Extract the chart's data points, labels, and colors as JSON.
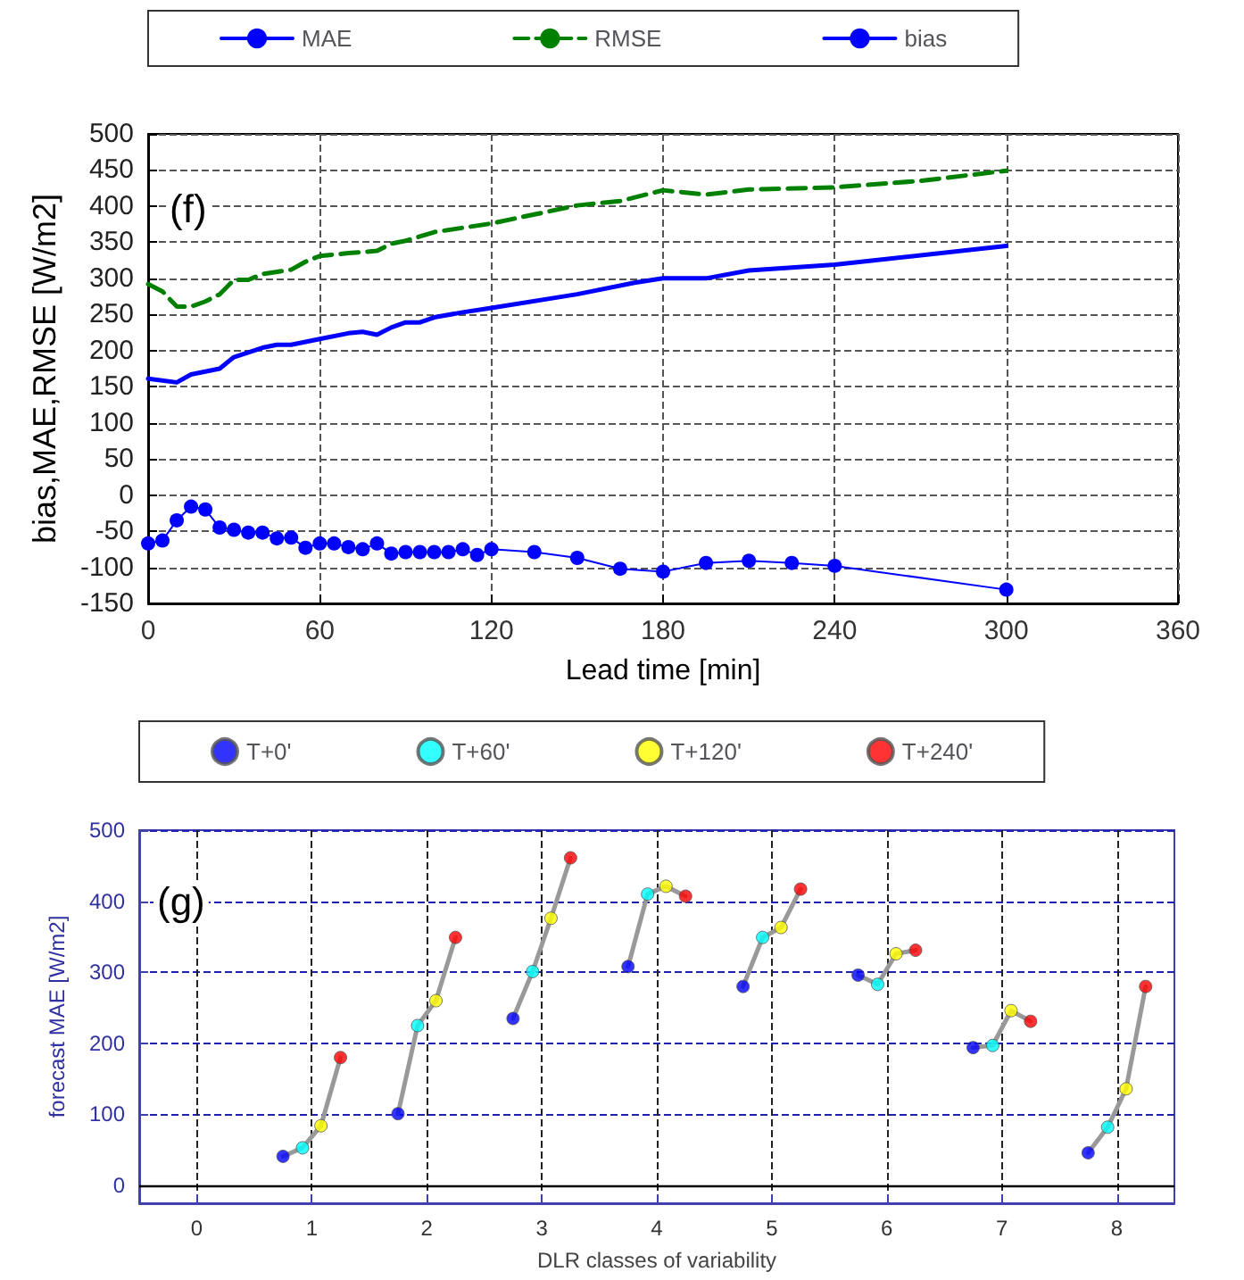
{
  "chart_data": [
    {
      "type": "line",
      "xlabel": "Lead time [min]",
      "ylabel": "bias,MAE,RMSE [W/m2]",
      "annotations": [
        "(f)"
      ],
      "xlim": [
        0,
        360
      ],
      "xticks": [
        0,
        60,
        120,
        180,
        240,
        300,
        360
      ],
      "ylim": [
        -150,
        500
      ],
      "yticks": [
        -150,
        -100,
        -50,
        0,
        50,
        100,
        150,
        200,
        250,
        300,
        350,
        400,
        450,
        500
      ],
      "grid": true,
      "legend": "top",
      "series": [
        {
          "name": "MAE",
          "color": "#0000ff",
          "line_style": "solid",
          "marker": "none",
          "x": [
            0,
            10,
            15,
            25,
            30,
            40,
            45,
            50,
            60,
            70,
            75,
            80,
            85,
            90,
            95,
            100,
            110,
            120,
            150,
            170,
            180,
            195,
            210,
            240,
            300
          ],
          "values": [
            161,
            156,
            167,
            175,
            191,
            204,
            208,
            208,
            216,
            224,
            226,
            222,
            232,
            239,
            239,
            246,
            253,
            259,
            278,
            294,
            300,
            300,
            311,
            319,
            345
          ]
        },
        {
          "name": "RMSE",
          "color": "#008000",
          "line_style": "dashed",
          "marker": "none",
          "x": [
            0,
            5,
            10,
            15,
            20,
            25,
            30,
            35,
            40,
            50,
            55,
            60,
            70,
            80,
            85,
            90,
            100,
            120,
            150,
            165,
            180,
            195,
            210,
            240,
            270,
            300
          ],
          "values": [
            292,
            282,
            261,
            261,
            268,
            278,
            298,
            298,
            306,
            312,
            323,
            331,
            335,
            338,
            348,
            352,
            364,
            376,
            401,
            407,
            422,
            416,
            423,
            426,
            435,
            449
          ]
        },
        {
          "name": "bias",
          "color": "#0000ff",
          "line_style": "solid",
          "marker": "circle",
          "x": [
            0,
            5,
            10,
            15,
            20,
            25,
            30,
            35,
            40,
            45,
            50,
            55,
            60,
            65,
            70,
            75,
            80,
            85,
            90,
            95,
            100,
            105,
            110,
            115,
            120,
            135,
            150,
            165,
            180,
            195,
            210,
            225,
            240,
            300
          ],
          "values": [
            -67,
            -63,
            -35,
            -16,
            -20,
            -45,
            -48,
            -52,
            -52,
            -60,
            -59,
            -73,
            -67,
            -67,
            -72,
            -75,
            -67,
            -81,
            -79,
            -79,
            -79,
            -79,
            -75,
            -83,
            -75,
            -79,
            -87,
            -102,
            -106,
            -94,
            -91,
            -94,
            -98,
            -131
          ]
        }
      ]
    },
    {
      "type": "scatter",
      "xlabel": "DLR classes of variability",
      "ylabel": "forecast MAE [W/m2]",
      "annotations": [
        "(g)"
      ],
      "xlim": [
        -0.5,
        8.5
      ],
      "xticks": [
        0,
        1,
        2,
        3,
        4,
        5,
        6,
        7,
        8
      ],
      "ylim": [
        -25,
        500
      ],
      "yticks": [
        0,
        100,
        200,
        300,
        400,
        500
      ],
      "grid": true,
      "legend": "top",
      "ref_lines": [
        {
          "axis": "y",
          "value": 0,
          "color": "#000000"
        }
      ],
      "series": [
        {
          "type": "line",
          "color": "#999999",
          "marker": "none",
          "x": [
            0.75,
            0.92,
            1.08,
            1.25,
            null,
            1.75,
            1.92,
            2.08,
            2.25,
            null,
            2.75,
            2.92,
            3.08,
            3.25,
            null,
            3.75,
            3.92,
            4.08,
            4.25,
            null,
            4.75,
            4.92,
            5.08,
            5.25,
            null,
            5.75,
            5.92,
            6.08,
            6.25,
            null,
            6.75,
            6.92,
            7.08,
            7.25,
            null,
            7.75,
            7.92,
            8.08,
            8.25
          ],
          "values": [
            41,
            53,
            84,
            180,
            null,
            101,
            225,
            260,
            349,
            null,
            235,
            301,
            376,
            461,
            null,
            308,
            410,
            421,
            407,
            null,
            280,
            349,
            363,
            417,
            null,
            296,
            283,
            326,
            331,
            null,
            194,
            197,
            246,
            231,
            null,
            46,
            82,
            136,
            280
          ]
        },
        {
          "name": "T+0'",
          "color": "#0000ff",
          "marker": "circle",
          "x": [
            0.75,
            1.75,
            2.75,
            3.75,
            4.75,
            5.75,
            6.75,
            7.75
          ],
          "values": [
            41,
            101,
            235,
            308,
            280,
            296,
            194,
            46
          ]
        },
        {
          "name": "T+60'",
          "color": "#00ffff",
          "marker": "circle",
          "x": [
            0.92,
            1.92,
            2.92,
            3.92,
            4.92,
            5.92,
            6.92,
            7.92
          ],
          "values": [
            53,
            225,
            301,
            410,
            349,
            283,
            197,
            82
          ]
        },
        {
          "name": "T+120'",
          "color": "#ffff00",
          "marker": "circle",
          "x": [
            1.08,
            2.08,
            3.08,
            4.08,
            5.08,
            6.08,
            7.08,
            8.08
          ],
          "values": [
            84,
            260,
            376,
            421,
            363,
            326,
            246,
            136
          ]
        },
        {
          "name": "T+240'",
          "color": "#ff0000",
          "marker": "circle",
          "x": [
            1.25,
            2.25,
            3.25,
            4.25,
            5.25,
            6.25,
            7.25,
            8.25
          ],
          "values": [
            180,
            349,
            461,
            407,
            417,
            331,
            231,
            280
          ]
        }
      ]
    }
  ]
}
